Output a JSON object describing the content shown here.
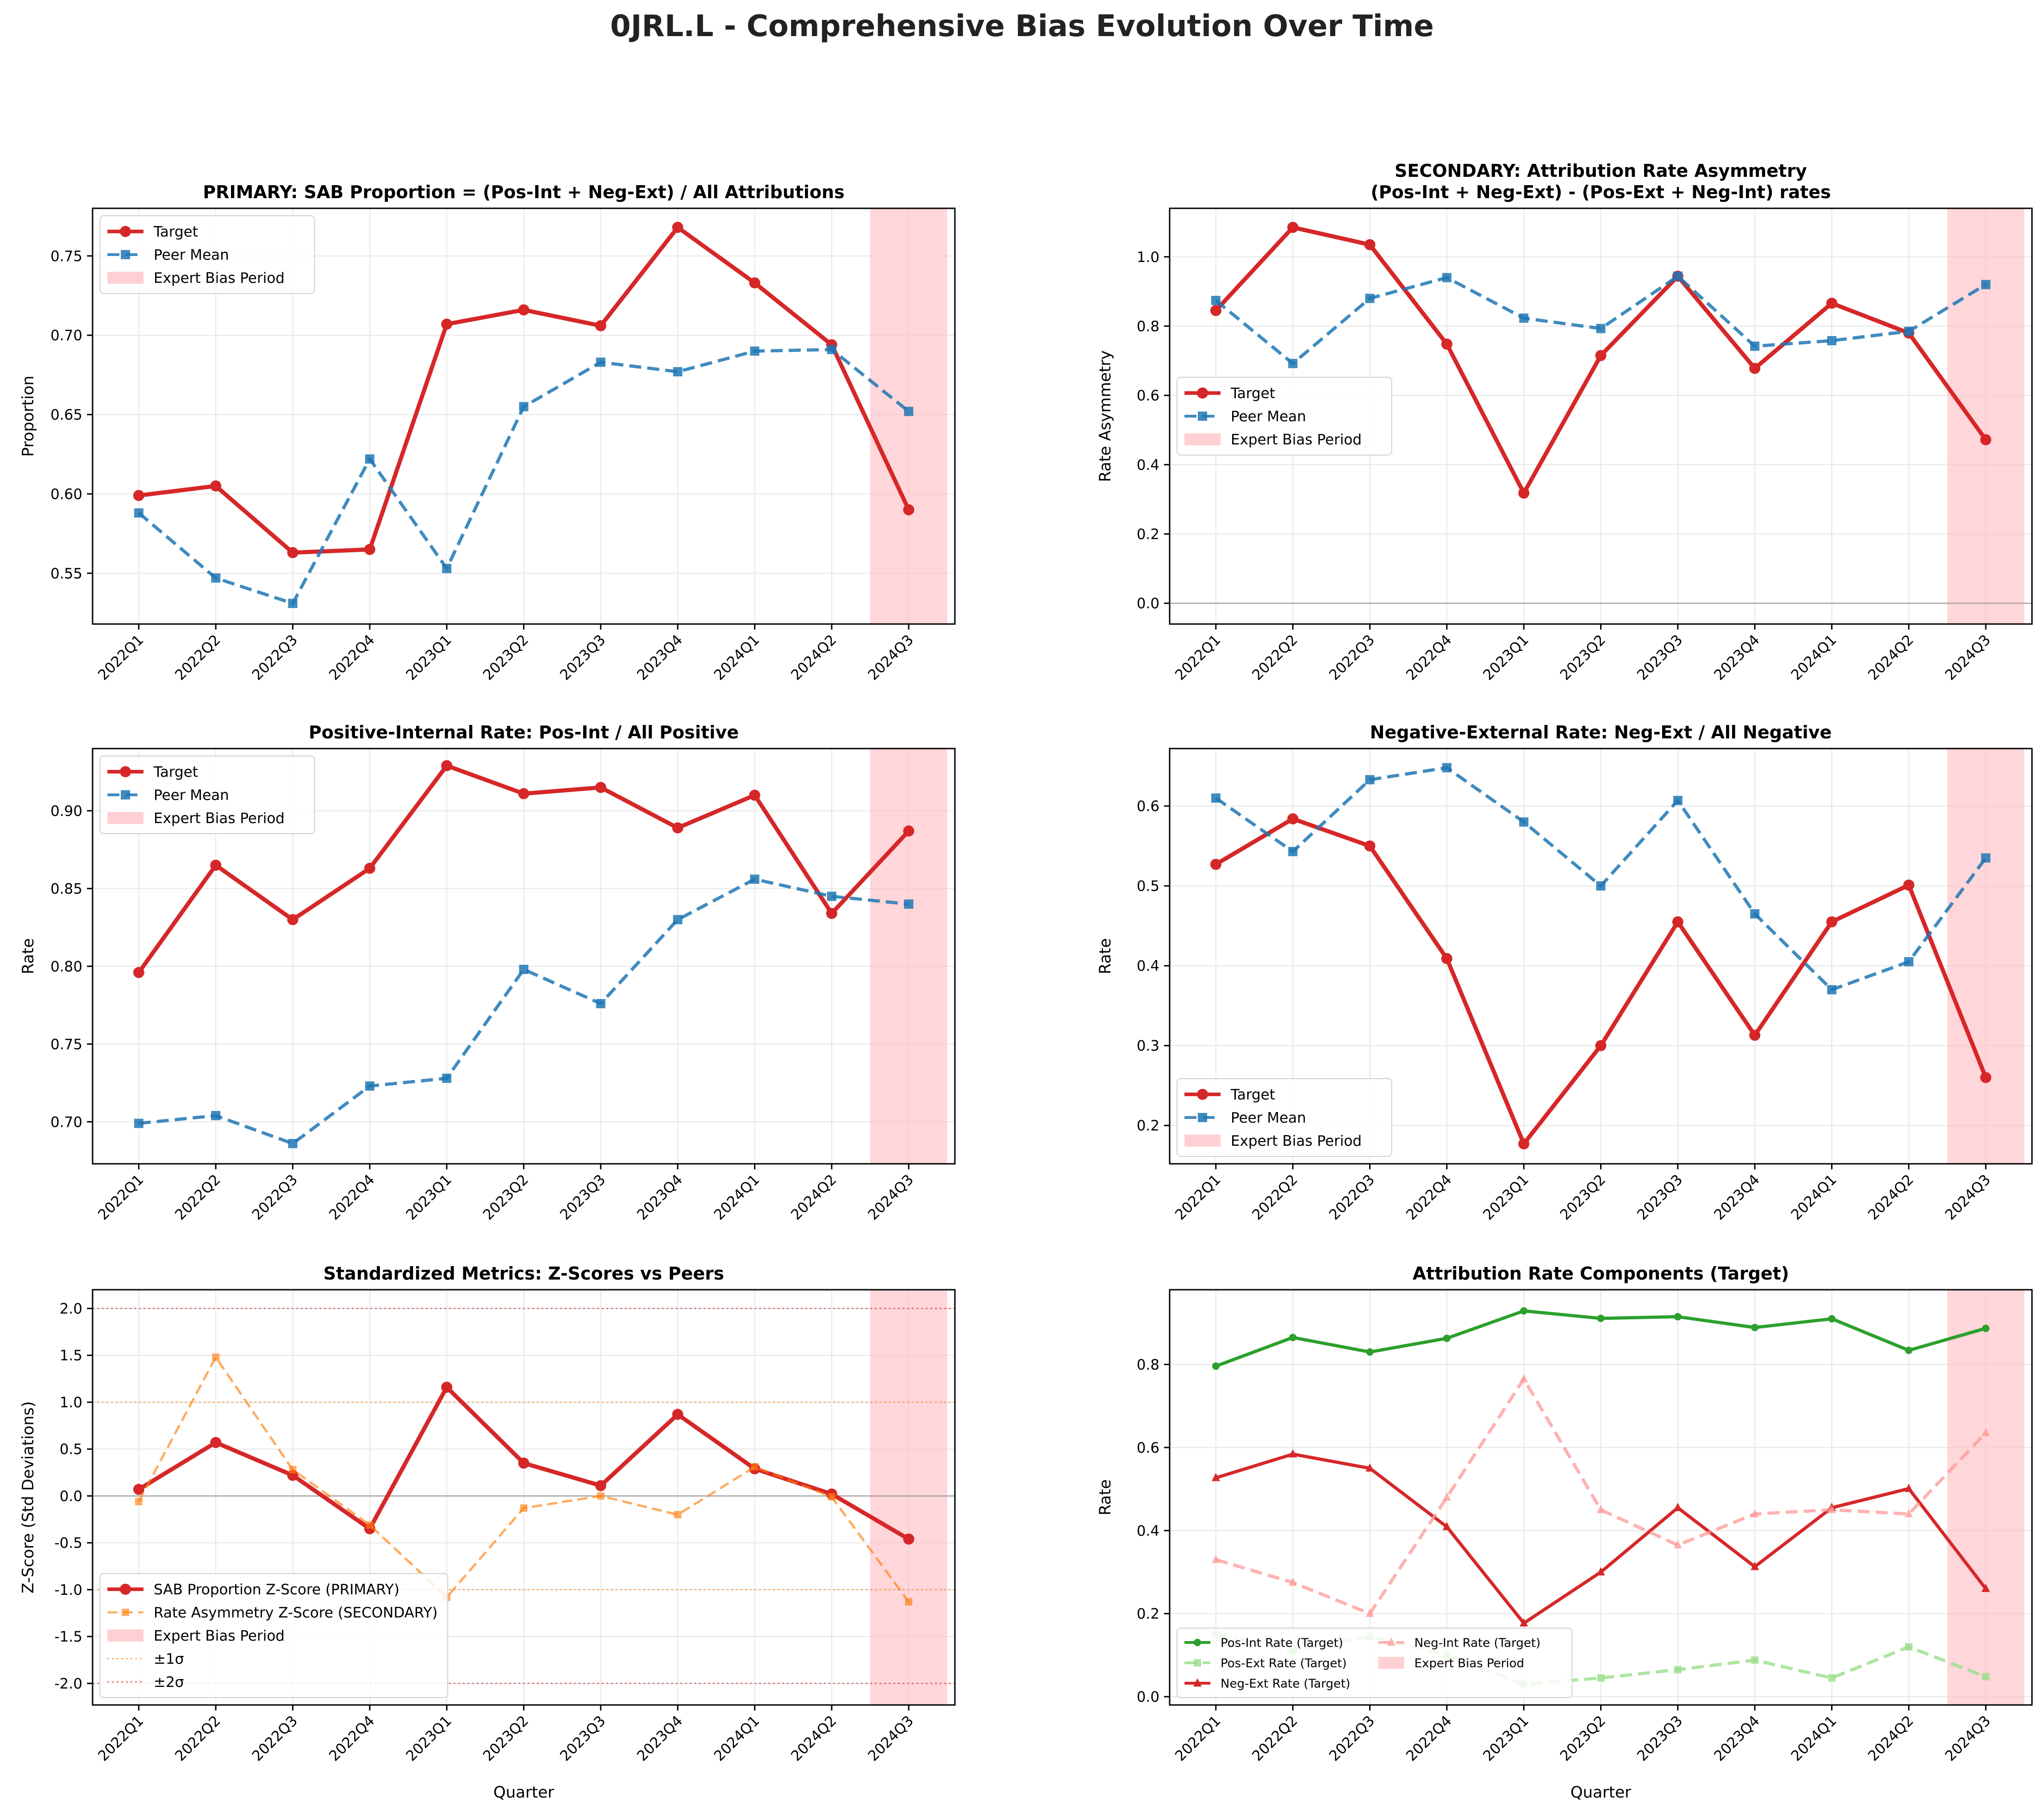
{
  "figure": {
    "title": "0JRL.L - Comprehensive Bias Evolution Over Time"
  },
  "colors": {
    "target": "#d62728",
    "peer": "#1f77b4",
    "orange": "#ff7f0e",
    "green": "#2ca02c",
    "light_green": "#98df8a",
    "light_red": "#ff9896",
    "shade": "#ffc0c4",
    "grid": "#e6e6e6",
    "zero_line": "#999999"
  },
  "chart_data": [
    {
      "type": "line",
      "title": "PRIMARY: SAB Proportion = (Pos-Int + Neg-Ext) / All Attributions",
      "xlabel": "",
      "ylabel": "Proportion",
      "x": [
        "2022Q1",
        "2022Q2",
        "2022Q3",
        "2022Q4",
        "2023Q1",
        "2023Q2",
        "2023Q3",
        "2023Q4",
        "2024Q1",
        "2024Q2",
        "2024Q3"
      ],
      "ylim": [
        0.518,
        0.78
      ],
      "yticks": [
        0.55,
        0.6,
        0.65,
        0.7,
        0.75
      ],
      "tick_decimals": 2,
      "grid": true,
      "legend_position": "upper-left",
      "shaded_period": {
        "label": "Expert Bias Period",
        "from_index": 9.5,
        "to_index": 10.5
      },
      "series": [
        {
          "name": "Target",
          "style": "target",
          "values": [
            0.599,
            0.605,
            0.563,
            0.565,
            0.707,
            0.716,
            0.706,
            0.768,
            0.733,
            0.694,
            0.59
          ]
        },
        {
          "name": "Peer Mean",
          "style": "peer",
          "values": [
            0.588,
            0.547,
            0.531,
            0.622,
            0.553,
            0.655,
            0.683,
            0.677,
            0.69,
            0.691,
            0.652
          ]
        }
      ]
    },
    {
      "type": "line",
      "title": "SECONDARY: Attribution Rate Asymmetry",
      "subtitle": "(Pos-Int + Neg-Ext) - (Pos-Ext + Neg-Int) rates",
      "xlabel": "",
      "ylabel": "Rate Asymmetry",
      "x": [
        "2022Q1",
        "2022Q2",
        "2022Q3",
        "2022Q4",
        "2023Q1",
        "2023Q2",
        "2023Q3",
        "2023Q4",
        "2024Q1",
        "2024Q2",
        "2024Q3"
      ],
      "ylim": [
        -0.06,
        1.14
      ],
      "yticks": [
        0.0,
        0.2,
        0.4,
        0.6,
        0.8,
        1.0
      ],
      "tick_decimals": 1,
      "zero_line": true,
      "grid": true,
      "legend_position": "center-left",
      "shaded_period": {
        "label": "Expert Bias Period",
        "from_index": 9.5,
        "to_index": 10.5
      },
      "series": [
        {
          "name": "Target",
          "style": "target",
          "values": [
            0.845,
            1.085,
            1.035,
            0.748,
            0.318,
            0.715,
            0.944,
            0.678,
            0.866,
            0.78,
            0.472
          ]
        },
        {
          "name": "Peer Mean",
          "style": "peer",
          "values": [
            0.874,
            0.692,
            0.88,
            0.94,
            0.823,
            0.793,
            0.944,
            0.742,
            0.758,
            0.785,
            0.92
          ]
        }
      ]
    },
    {
      "type": "line",
      "title": "Positive-Internal Rate: Pos-Int / All Positive",
      "xlabel": "",
      "ylabel": "Rate",
      "x": [
        "2022Q1",
        "2022Q2",
        "2022Q3",
        "2022Q4",
        "2023Q1",
        "2023Q2",
        "2023Q3",
        "2023Q4",
        "2024Q1",
        "2024Q2",
        "2024Q3"
      ],
      "ylim": [
        0.673,
        0.94
      ],
      "yticks": [
        0.7,
        0.75,
        0.8,
        0.85,
        0.9
      ],
      "tick_decimals": 2,
      "grid": true,
      "legend_position": "upper-left",
      "shaded_period": {
        "label": "Expert Bias Period",
        "from_index": 9.5,
        "to_index": 10.5
      },
      "series": [
        {
          "name": "Target",
          "style": "target",
          "values": [
            0.796,
            0.865,
            0.83,
            0.863,
            0.929,
            0.911,
            0.915,
            0.889,
            0.91,
            0.834,
            0.887
          ]
        },
        {
          "name": "Peer Mean",
          "style": "peer",
          "values": [
            0.699,
            0.704,
            0.686,
            0.723,
            0.728,
            0.798,
            0.776,
            0.83,
            0.856,
            0.845,
            0.84
          ]
        }
      ]
    },
    {
      "type": "line",
      "title": "Negative-External Rate: Neg-Ext / All Negative",
      "xlabel": "",
      "ylabel": "Rate",
      "x": [
        "2022Q1",
        "2022Q2",
        "2022Q3",
        "2022Q4",
        "2023Q1",
        "2023Q2",
        "2023Q3",
        "2023Q4",
        "2024Q1",
        "2024Q2",
        "2024Q3"
      ],
      "ylim": [
        0.152,
        0.672
      ],
      "yticks": [
        0.2,
        0.3,
        0.4,
        0.5,
        0.6
      ],
      "tick_decimals": 1,
      "grid": true,
      "legend_position": "lower-left",
      "shaded_period": {
        "label": "Expert Bias Period",
        "from_index": 9.5,
        "to_index": 10.5
      },
      "series": [
        {
          "name": "Target",
          "style": "target",
          "values": [
            0.527,
            0.584,
            0.55,
            0.409,
            0.177,
            0.3,
            0.455,
            0.313,
            0.455,
            0.501,
            0.26
          ]
        },
        {
          "name": "Peer Mean",
          "style": "peer",
          "values": [
            0.61,
            0.543,
            0.633,
            0.648,
            0.58,
            0.5,
            0.607,
            0.465,
            0.37,
            0.405,
            0.535
          ]
        }
      ]
    },
    {
      "type": "line",
      "title": "Standardized Metrics: Z-Scores vs Peers",
      "xlabel": "Quarter",
      "ylabel": "Z-Score (Std Deviations)",
      "x": [
        "2022Q1",
        "2022Q2",
        "2022Q3",
        "2022Q4",
        "2023Q1",
        "2023Q2",
        "2023Q3",
        "2023Q4",
        "2024Q1",
        "2024Q2",
        "2024Q3"
      ],
      "ylim": [
        -2.23,
        2.2
      ],
      "yticks": [
        -2.0,
        -1.5,
        -1.0,
        -0.5,
        0.0,
        0.5,
        1.0,
        1.5,
        2.0
      ],
      "tick_decimals": 1,
      "zero_line": true,
      "grid": true,
      "legend_position": "lower-left",
      "shaded_period": {
        "label": "Expert Bias Period",
        "from_index": 9.5,
        "to_index": 10.5
      },
      "reference_lines": [
        {
          "y": 1.0,
          "style": "sigma1",
          "label": "±1σ"
        },
        {
          "y": -1.0,
          "style": "sigma1",
          "label": ""
        },
        {
          "y": 2.0,
          "style": "sigma2",
          "label": "±2σ"
        },
        {
          "y": -2.0,
          "style": "sigma2",
          "label": ""
        }
      ],
      "series": [
        {
          "name": "SAB Proportion Z-Score (PRIMARY)",
          "style": "target",
          "values": [
            0.07,
            0.57,
            0.22,
            -0.35,
            1.16,
            0.35,
            0.11,
            0.87,
            0.29,
            0.02,
            -0.46
          ]
        },
        {
          "name": "Rate Asymmetry Z-Score (SECONDARY)",
          "style": "orange_dash",
          "values": [
            -0.06,
            1.48,
            0.28,
            -0.31,
            -1.08,
            -0.13,
            0.0,
            -0.2,
            0.31,
            -0.01,
            -1.13
          ]
        }
      ]
    },
    {
      "type": "line",
      "title": "Attribution Rate Components (Target)",
      "xlabel": "Quarter",
      "ylabel": "Rate",
      "x": [
        "2022Q1",
        "2022Q2",
        "2022Q3",
        "2022Q4",
        "2023Q1",
        "2023Q2",
        "2023Q3",
        "2023Q4",
        "2024Q1",
        "2024Q2",
        "2024Q3"
      ],
      "ylim": [
        -0.02,
        0.98
      ],
      "yticks": [
        0.0,
        0.2,
        0.4,
        0.6,
        0.8
      ],
      "tick_decimals": 1,
      "grid": true,
      "legend_position": "lower-left",
      "legend_columns": 2,
      "shaded_period": {
        "label": "Expert Bias Period",
        "from_index": 9.5,
        "to_index": 10.5
      },
      "series": [
        {
          "name": "Pos-Int Rate (Target)",
          "style": "green",
          "values": [
            0.796,
            0.865,
            0.83,
            0.863,
            0.929,
            0.911,
            0.915,
            0.889,
            0.91,
            0.834,
            0.887
          ]
        },
        {
          "name": "Pos-Ext Rate (Target)",
          "style": "light_green_dash",
          "values": [
            0.15,
            0.11,
            0.145,
            0.1,
            0.03,
            0.045,
            0.065,
            0.088,
            0.045,
            0.12,
            0.048
          ]
        },
        {
          "name": "Neg-Ext Rate (Target)",
          "style": "red_tri",
          "values": [
            0.527,
            0.584,
            0.55,
            0.409,
            0.177,
            0.3,
            0.455,
            0.313,
            0.455,
            0.501,
            0.26
          ]
        },
        {
          "name": "Neg-Int Rate (Target)",
          "style": "light_red_dash",
          "values": [
            0.33,
            0.275,
            0.2,
            0.48,
            0.765,
            0.45,
            0.365,
            0.44,
            0.45,
            0.44,
            0.635
          ]
        }
      ]
    }
  ]
}
